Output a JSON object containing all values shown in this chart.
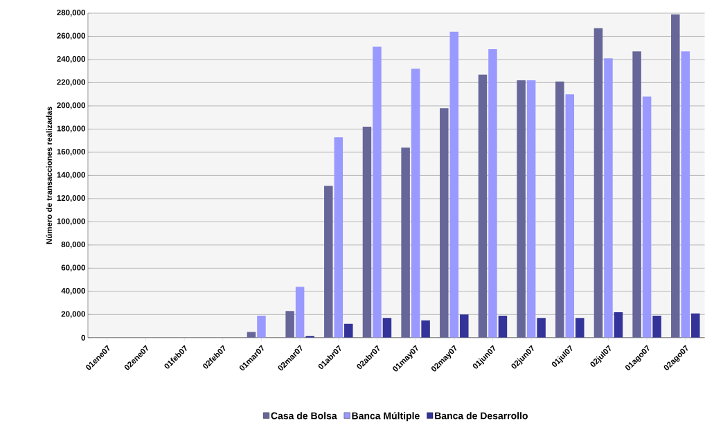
{
  "chart_data": {
    "type": "bar",
    "ylabel": "Número de transacciones realizadas",
    "categories": [
      "01ene07",
      "02ene07",
      "01feb07",
      "02feb07",
      "01mar07",
      "02mar07",
      "01abr07",
      "02abr07",
      "01may07",
      "02may07",
      "01jun07",
      "02jun07",
      "01jul07",
      "02jul07",
      "01ago07",
      "02ago07"
    ],
    "series": [
      {
        "name": "Casa de Bolsa",
        "color": "#666699",
        "values": [
          0,
          0,
          0,
          0,
          5000,
          23000,
          131000,
          182000,
          164000,
          198000,
          227000,
          222000,
          221000,
          267000,
          247000,
          279000
        ]
      },
      {
        "name": "Banca Múltiple",
        "color": "#9999ff",
        "values": [
          0,
          0,
          0,
          0,
          19000,
          44000,
          173000,
          251000,
          232000,
          264000,
          249000,
          222000,
          210000,
          241000,
          208000,
          247000
        ]
      },
      {
        "name": "Banca de Desarrollo",
        "color": "#333399",
        "values": [
          0,
          0,
          0,
          0,
          0,
          1500,
          12000,
          17000,
          15000,
          20000,
          19000,
          17000,
          17000,
          22000,
          19000,
          21000
        ]
      }
    ],
    "ylim": [
      0,
      280000
    ],
    "yticks": [
      0,
      {
        "value": 20000,
        "label": "20,000"
      },
      {
        "value": 40000,
        "label": "40,000"
      },
      {
        "value": 60000,
        "label": "60,000"
      },
      {
        "value": 80000,
        "label": "80,000"
      },
      {
        "value": 100000,
        "label": "100,000"
      },
      {
        "value": 120000,
        "label": "120,000"
      },
      {
        "value": 140000,
        "label": "140,000"
      },
      {
        "value": 160000,
        "label": "160,000"
      },
      {
        "value": 180000,
        "label": "180,000"
      },
      {
        "value": 200000,
        "label": "200,000"
      },
      {
        "value": 220000,
        "label": "220,000"
      },
      {
        "value": 240000,
        "label": "240,000"
      },
      {
        "value": 260000,
        "label": "260,000"
      },
      {
        "value": 280000,
        "label": "280,000"
      }
    ],
    "grid": "y",
    "legend": "bottom"
  }
}
